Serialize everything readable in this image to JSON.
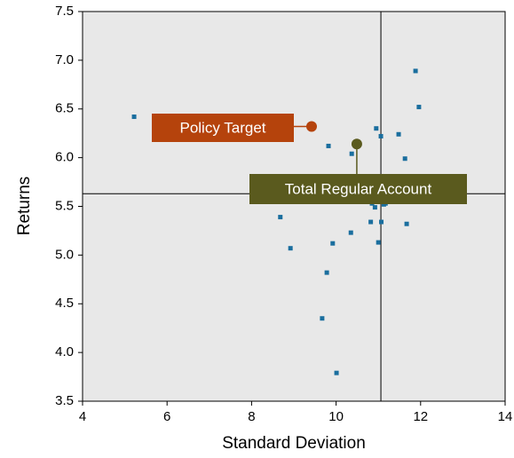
{
  "chart_data": {
    "type": "scatter",
    "xlabel": "Standard Deviation",
    "ylabel": "Returns",
    "xlim": [
      4,
      14
    ],
    "xticks": [
      4,
      6,
      8,
      10,
      12,
      14
    ],
    "ylim": [
      3.5,
      7.5
    ],
    "yticks": [
      3.5,
      {
        "value": 4,
        "label": "4.0"
      },
      4.5,
      {
        "value": 5,
        "label": "5.0"
      },
      5.5,
      {
        "value": 6,
        "label": "6.0"
      },
      6.5,
      {
        "value": 7,
        "label": "7.0"
      },
      7.5
    ],
    "color": "#1a6e9e",
    "x": [
      5.22,
      11.88,
      11.96,
      10.95,
      11.06,
      11.48,
      9.82,
      10.37,
      11.63,
      10.85,
      10.92,
      11.13,
      11.17,
      8.68,
      10.82,
      11.07,
      11.67,
      10.35,
      9.92,
      11.0,
      8.92,
      9.78,
      9.67,
      10.01
    ],
    "y": [
      6.42,
      6.89,
      6.52,
      6.3,
      6.22,
      6.24,
      6.12,
      6.04,
      5.99,
      5.53,
      5.49,
      5.52,
      5.53,
      5.39,
      5.34,
      5.34,
      5.32,
      5.23,
      5.12,
      5.13,
      5.07,
      4.82,
      4.35,
      3.79
    ],
    "reference_lines": {
      "x": 11.06,
      "y": 5.63
    },
    "highlights": [
      {
        "label": "Policy Target",
        "x": 9.42,
        "y": 6.32,
        "color": "#b5430c"
      },
      {
        "label": "Total Regular Account",
        "x": 10.49,
        "y": 6.14,
        "color": "#5a5a1e"
      }
    ]
  }
}
